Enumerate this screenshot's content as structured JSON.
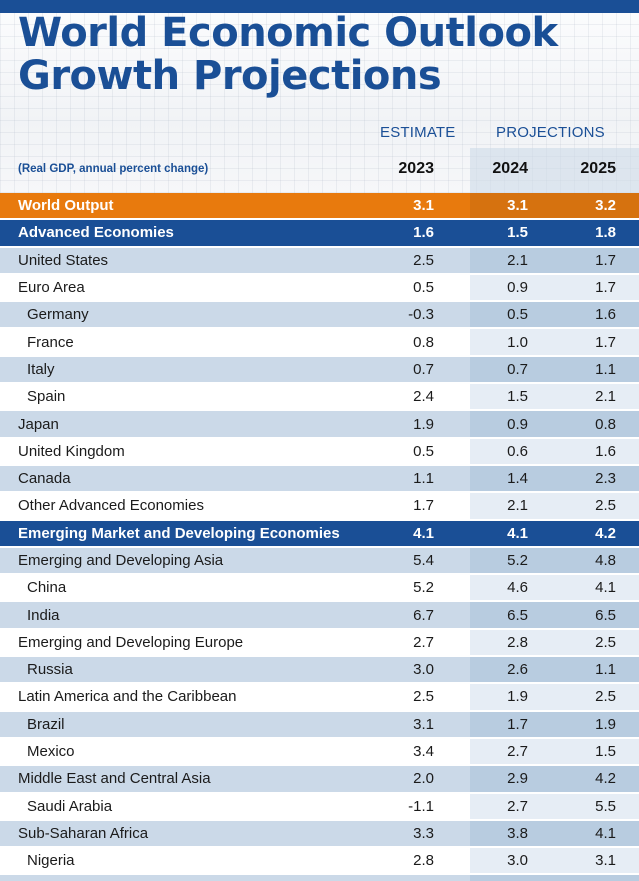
{
  "title": {
    "line1": "World Economic Outlook",
    "line2": "Growth Projections"
  },
  "header": {
    "estimate_label": "ESTIMATE",
    "projections_label": "PROJECTIONS",
    "subtitle": "(Real GDP, annual percent change)",
    "years": [
      "2023",
      "2024",
      "2025"
    ]
  },
  "colors": {
    "brand_blue": "#1a4f96",
    "world_orange": "#e87a0d",
    "light_row": "#cbd9e8",
    "projection_tint": "#b8cce0"
  },
  "rows": [
    {
      "name": "World Output",
      "style": "world",
      "indent": false,
      "values": [
        "3.1",
        "3.1",
        "3.2"
      ]
    },
    {
      "name": "Advanced Economies",
      "style": "group",
      "indent": false,
      "values": [
        "1.6",
        "1.5",
        "1.8"
      ]
    },
    {
      "name": "United States",
      "style": "light",
      "indent": false,
      "values": [
        "2.5",
        "2.1",
        "1.7"
      ]
    },
    {
      "name": "Euro Area",
      "style": "white",
      "indent": false,
      "values": [
        "0.5",
        "0.9",
        "1.7"
      ]
    },
    {
      "name": "Germany",
      "style": "light",
      "indent": true,
      "values": [
        "-0.3",
        "0.5",
        "1.6"
      ]
    },
    {
      "name": "France",
      "style": "white",
      "indent": true,
      "values": [
        "0.8",
        "1.0",
        "1.7"
      ]
    },
    {
      "name": "Italy",
      "style": "light",
      "indent": true,
      "values": [
        "0.7",
        "0.7",
        "1.1"
      ]
    },
    {
      "name": "Spain",
      "style": "white",
      "indent": true,
      "values": [
        "2.4",
        "1.5",
        "2.1"
      ]
    },
    {
      "name": "Japan",
      "style": "light",
      "indent": false,
      "values": [
        "1.9",
        "0.9",
        "0.8"
      ]
    },
    {
      "name": "United Kingdom",
      "style": "white",
      "indent": false,
      "values": [
        "0.5",
        "0.6",
        "1.6"
      ]
    },
    {
      "name": "Canada",
      "style": "light",
      "indent": false,
      "values": [
        "1.1",
        "1.4",
        "2.3"
      ]
    },
    {
      "name": "Other Advanced Economies",
      "style": "white",
      "indent": false,
      "values": [
        "1.7",
        "2.1",
        "2.5"
      ]
    },
    {
      "name": "Emerging Market and Developing Economies",
      "style": "group",
      "indent": false,
      "values": [
        "4.1",
        "4.1",
        "4.2"
      ]
    },
    {
      "name": "Emerging and Developing Asia",
      "style": "light",
      "indent": false,
      "values": [
        "5.4",
        "5.2",
        "4.8"
      ]
    },
    {
      "name": "China",
      "style": "white",
      "indent": true,
      "values": [
        "5.2",
        "4.6",
        "4.1"
      ]
    },
    {
      "name": "India",
      "style": "light",
      "indent": true,
      "values": [
        "6.7",
        "6.5",
        "6.5"
      ]
    },
    {
      "name": "Emerging and Developing Europe",
      "style": "white",
      "indent": false,
      "values": [
        "2.7",
        "2.8",
        "2.5"
      ]
    },
    {
      "name": "Russia",
      "style": "light",
      "indent": true,
      "values": [
        "3.0",
        "2.6",
        "1.1"
      ]
    },
    {
      "name": "Latin America and the Caribbean",
      "style": "white",
      "indent": false,
      "values": [
        "2.5",
        "1.9",
        "2.5"
      ]
    },
    {
      "name": "Brazil",
      "style": "light",
      "indent": true,
      "values": [
        "3.1",
        "1.7",
        "1.9"
      ]
    },
    {
      "name": "Mexico",
      "style": "white",
      "indent": true,
      "values": [
        "3.4",
        "2.7",
        "1.5"
      ]
    },
    {
      "name": "Middle East and Central Asia",
      "style": "light",
      "indent": false,
      "values": [
        "2.0",
        "2.9",
        "4.2"
      ]
    },
    {
      "name": "Saudi Arabia",
      "style": "white",
      "indent": true,
      "values": [
        "-1.1",
        "2.7",
        "5.5"
      ]
    },
    {
      "name": "Sub-Saharan Africa",
      "style": "light",
      "indent": false,
      "values": [
        "3.3",
        "3.8",
        "4.1"
      ]
    },
    {
      "name": "Nigeria",
      "style": "white",
      "indent": true,
      "values": [
        "2.8",
        "3.0",
        "3.1"
      ]
    }
  ]
}
